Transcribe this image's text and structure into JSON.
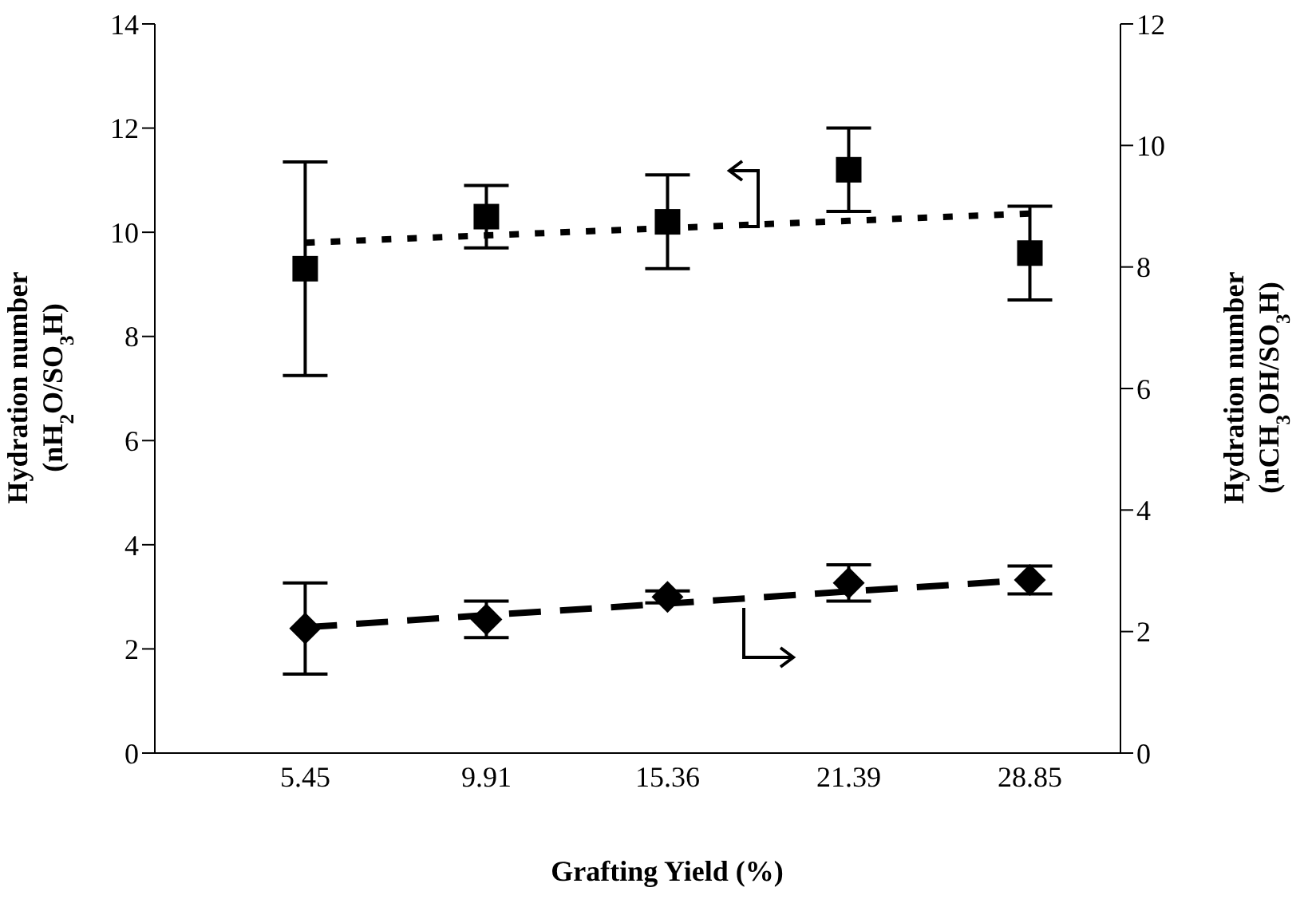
{
  "chart_data": {
    "type": "scatter",
    "xlabel": "Grafting Yield (%)",
    "ylabel": "Hydration number\n(nH$_{2}$O/SO$_{3}$H)",
    "y2label": "Hydration number\n(nCH$_{3}$OH/SO$_{3}$H)",
    "categories": [
      "5.45",
      "9.91",
      "15.36",
      "21.39",
      "28.85"
    ],
    "ylim": [
      0,
      14
    ],
    "yticks": [
      0,
      2,
      4,
      6,
      8,
      10,
      12,
      14
    ],
    "y2lim": [
      0,
      12
    ],
    "y2ticks": [
      0,
      2,
      4,
      6,
      8,
      10,
      12
    ],
    "grid": false,
    "legend": false,
    "series": [
      {
        "type": "scatter",
        "marker": "square",
        "color": "#000000",
        "axis": "y",
        "values": [
          9.3,
          10.3,
          10.2,
          11.2,
          9.6
        ],
        "errors": [
          2.05,
          0.6,
          0.9,
          0.8,
          0.9
        ]
      },
      {
        "type": "scatter",
        "marker": "diamond",
        "color": "#000000",
        "axis": "y2",
        "values": [
          2.05,
          2.2,
          2.57,
          2.8,
          2.85
        ],
        "errors": [
          0.75,
          0.3,
          0.1,
          0.3,
          0.23
        ]
      },
      {
        "type": "line",
        "marker": "none",
        "line_style": "dotted",
        "color": "#000000",
        "axis": "y",
        "values": [
          9.8,
          9.94,
          10.08,
          10.22,
          10.36
        ]
      },
      {
        "type": "line",
        "marker": "none",
        "line_style": "dashed",
        "color": "#000000",
        "axis": "y2",
        "values": [
          2.07,
          2.27,
          2.46,
          2.66,
          2.85
        ]
      }
    ]
  }
}
